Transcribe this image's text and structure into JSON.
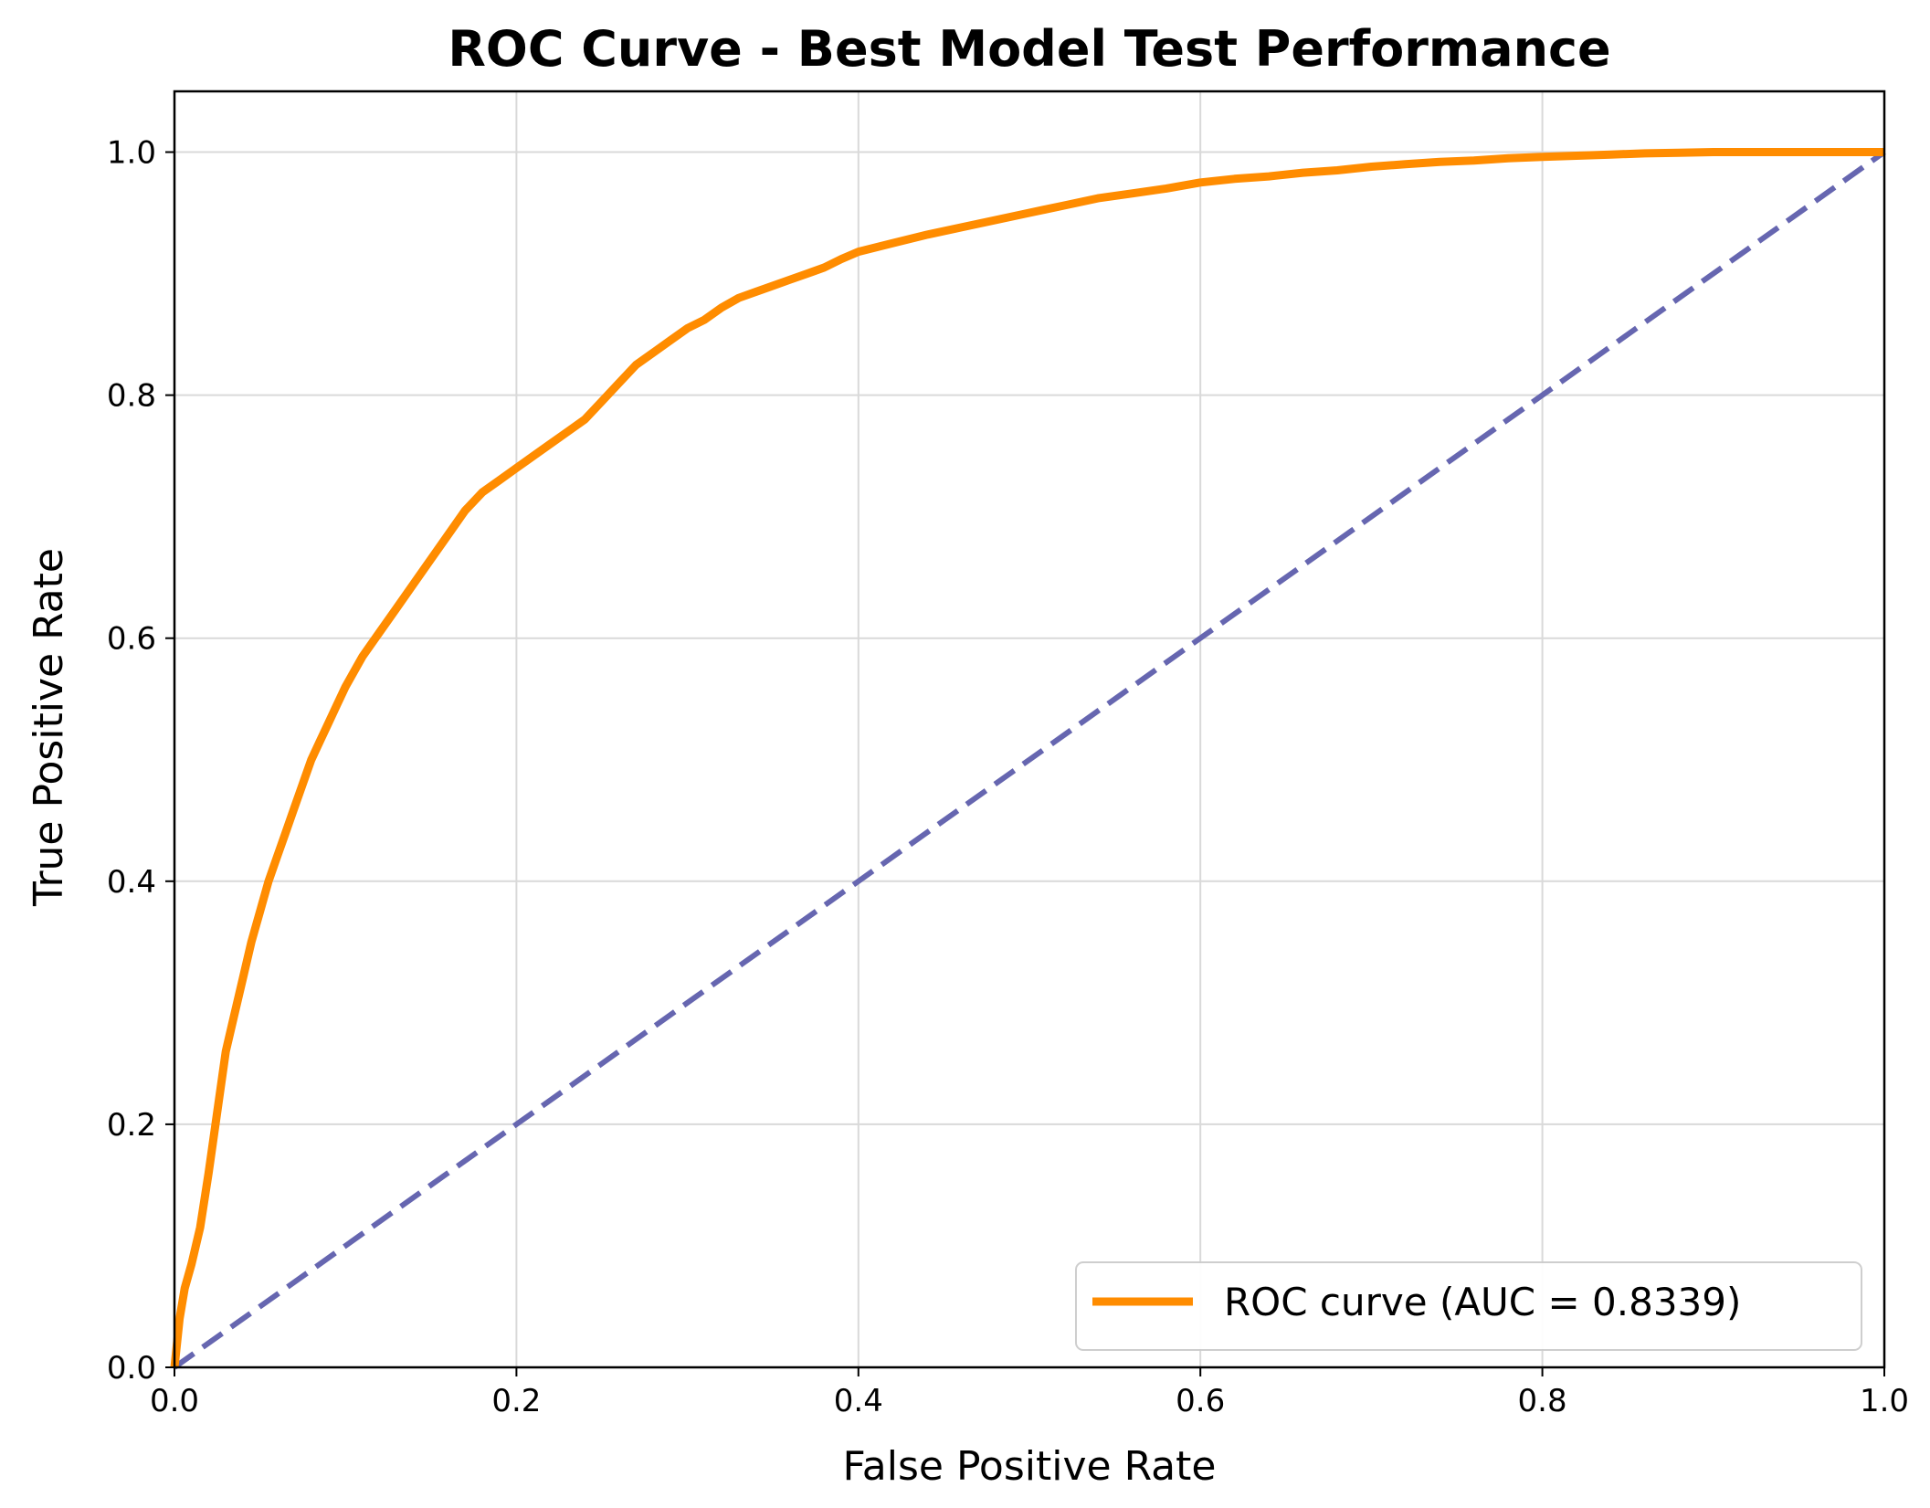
{
  "chart_data": {
    "type": "line",
    "title": "ROC Curve - Best Model Test Performance",
    "xlabel": "False Positive Rate",
    "ylabel": "True Positive Rate",
    "xlim": [
      0.0,
      1.0
    ],
    "ylim": [
      0.0,
      1.05
    ],
    "xticks": [
      0.0,
      0.2,
      0.4,
      0.6,
      0.8,
      1.0
    ],
    "xtick_labels": [
      "0.0",
      "0.2",
      "0.4",
      "0.6",
      "0.8",
      "1.0"
    ],
    "yticks": [
      0.0,
      0.2,
      0.4,
      0.6,
      0.8,
      1.0
    ],
    "ytick_labels": [
      "0.0",
      "0.2",
      "0.4",
      "0.6",
      "0.8",
      "1.0"
    ],
    "grid": true,
    "legend": {
      "placement": "lower-right"
    },
    "series": [
      {
        "name": "ROC curve (AUC = 0.8339)",
        "color": "#ff8c00",
        "style": "solid",
        "x": [
          0.0,
          0.003,
          0.006,
          0.01,
          0.015,
          0.02,
          0.025,
          0.03,
          0.035,
          0.04,
          0.045,
          0.05,
          0.055,
          0.06,
          0.065,
          0.07,
          0.075,
          0.08,
          0.085,
          0.09,
          0.095,
          0.1,
          0.11,
          0.12,
          0.13,
          0.14,
          0.15,
          0.16,
          0.17,
          0.18,
          0.19,
          0.2,
          0.21,
          0.22,
          0.23,
          0.24,
          0.25,
          0.26,
          0.27,
          0.28,
          0.29,
          0.3,
          0.31,
          0.32,
          0.33,
          0.34,
          0.35,
          0.36,
          0.37,
          0.38,
          0.39,
          0.4,
          0.42,
          0.44,
          0.46,
          0.48,
          0.5,
          0.52,
          0.54,
          0.56,
          0.58,
          0.6,
          0.62,
          0.64,
          0.66,
          0.68,
          0.7,
          0.72,
          0.74,
          0.76,
          0.78,
          0.8,
          0.82,
          0.84,
          0.86,
          0.88,
          0.9,
          0.92,
          0.94,
          0.96,
          0.98,
          1.0
        ],
        "y": [
          0.0,
          0.04,
          0.065,
          0.085,
          0.115,
          0.16,
          0.21,
          0.26,
          0.29,
          0.32,
          0.35,
          0.375,
          0.4,
          0.42,
          0.44,
          0.46,
          0.48,
          0.5,
          0.515,
          0.53,
          0.545,
          0.56,
          0.585,
          0.605,
          0.625,
          0.645,
          0.665,
          0.685,
          0.705,
          0.72,
          0.73,
          0.74,
          0.75,
          0.76,
          0.77,
          0.78,
          0.795,
          0.81,
          0.825,
          0.835,
          0.845,
          0.855,
          0.862,
          0.872,
          0.88,
          0.885,
          0.89,
          0.895,
          0.9,
          0.905,
          0.912,
          0.918,
          0.925,
          0.932,
          0.938,
          0.944,
          0.95,
          0.956,
          0.962,
          0.966,
          0.97,
          0.975,
          0.978,
          0.98,
          0.983,
          0.985,
          0.988,
          0.99,
          0.992,
          0.993,
          0.995,
          0.996,
          0.997,
          0.998,
          0.999,
          0.9995,
          1.0,
          1.0,
          1.0,
          1.0,
          1.0,
          1.0
        ]
      },
      {
        "color": "#6666b0",
        "style": "dashed",
        "x": [
          0.0,
          1.0
        ],
        "y": [
          0.0,
          1.0
        ]
      }
    ]
  }
}
